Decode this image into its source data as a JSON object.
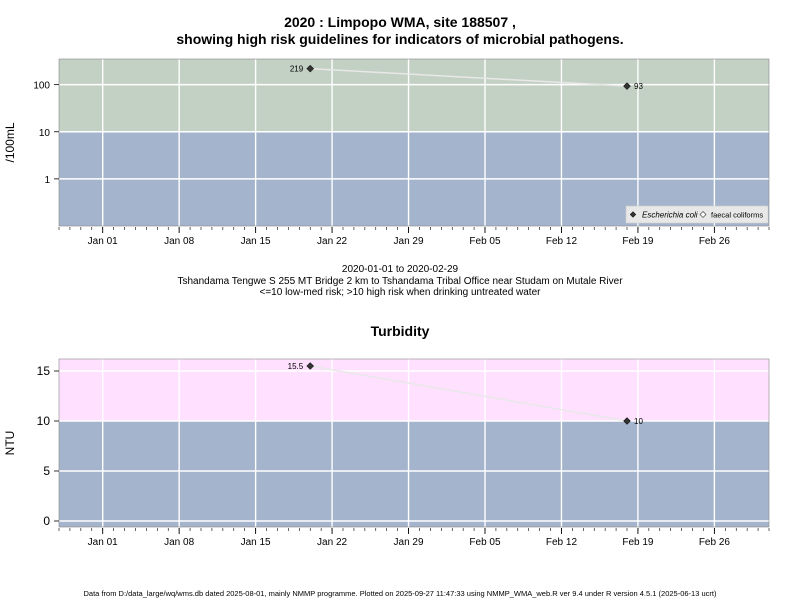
{
  "header": {
    "title_line1": "2020 : Limpopo WMA, site 188507 ,",
    "title_line2": "showing high risk guidelines for indicators of microbial pathogens."
  },
  "colors": {
    "low_risk_band": "#a4b4cc",
    "high_risk_band_microbial": "#c3d0c4",
    "high_risk_band_turbidity": "#ffe0ff",
    "series_line": "#e8e8e8",
    "marker": "#333333",
    "grid": "#ffffff"
  },
  "chart_data": [
    {
      "type": "scatter",
      "ylabel": "/100mL",
      "y_scale": "log",
      "y_ticks": [
        1,
        10,
        100
      ],
      "y_tick_labels": [
        "1",
        "10",
        "100"
      ],
      "ylim": [
        0.1,
        350
      ],
      "x_range": [
        "2019-12-28",
        "2020-03-02"
      ],
      "x_ticks": [
        "2020-01-01",
        "2020-01-08",
        "2020-01-15",
        "2020-01-22",
        "2020-01-29",
        "2020-02-05",
        "2020-02-12",
        "2020-02-19",
        "2020-02-26"
      ],
      "x_tick_labels": [
        "Jan 01",
        "Jan 08",
        "Jan 15",
        "Jan 22",
        "Jan 29",
        "Feb 05",
        "Feb 12",
        "Feb 19",
        "Feb 26"
      ],
      "guideline": 10,
      "grid": true,
      "series": [
        {
          "name": "Escherichia coli",
          "points": [
            {
              "x": "2020-01-20",
              "y": 219,
              "label": "219"
            },
            {
              "x": "2020-02-18",
              "y": 93,
              "label": "93"
            }
          ]
        },
        {
          "name": "faecal coliforms",
          "points": []
        }
      ],
      "legend": "bottom-right",
      "caption_lines": [
        "2020-01-01 to 2020-02-29",
        "Tshandama Tengwe S 255 MT Bridge 2 km to Tshandama Tribal Office near Studam on Mutale River",
        "<=10 low-med risk; >10 high risk when drinking untreated water"
      ]
    },
    {
      "type": "scatter",
      "title": "Turbidity",
      "ylabel": "NTU",
      "y_scale": "linear",
      "y_ticks": [
        0,
        5,
        10,
        15
      ],
      "y_tick_labels": [
        "0",
        "5",
        "10",
        "15"
      ],
      "ylim": [
        -0.6,
        16.2
      ],
      "x_range": [
        "2019-12-28",
        "2020-03-02"
      ],
      "x_ticks": [
        "2020-01-01",
        "2020-01-08",
        "2020-01-15",
        "2020-01-22",
        "2020-01-29",
        "2020-02-05",
        "2020-02-12",
        "2020-02-19",
        "2020-02-26"
      ],
      "x_tick_labels": [
        "Jan 01",
        "Jan 08",
        "Jan 15",
        "Jan 22",
        "Jan 29",
        "Feb 05",
        "Feb 12",
        "Feb 19",
        "Feb 26"
      ],
      "guideline": 10,
      "grid": true,
      "series": [
        {
          "points": [
            {
              "x": "2020-01-20",
              "y": 15.5,
              "label": "15.5"
            },
            {
              "x": "2020-02-18",
              "y": 10,
              "label": "10"
            }
          ]
        }
      ]
    }
  ],
  "footer": "Data from D:/data_large/wq/wms.db dated 2025-08-01, mainly NMMP programme. Plotted on 2025-09-27 11:47:33 using NMMP_WMA_web.R ver 9.4 under R version 4.5.1 (2025-06-13 ucrt)"
}
